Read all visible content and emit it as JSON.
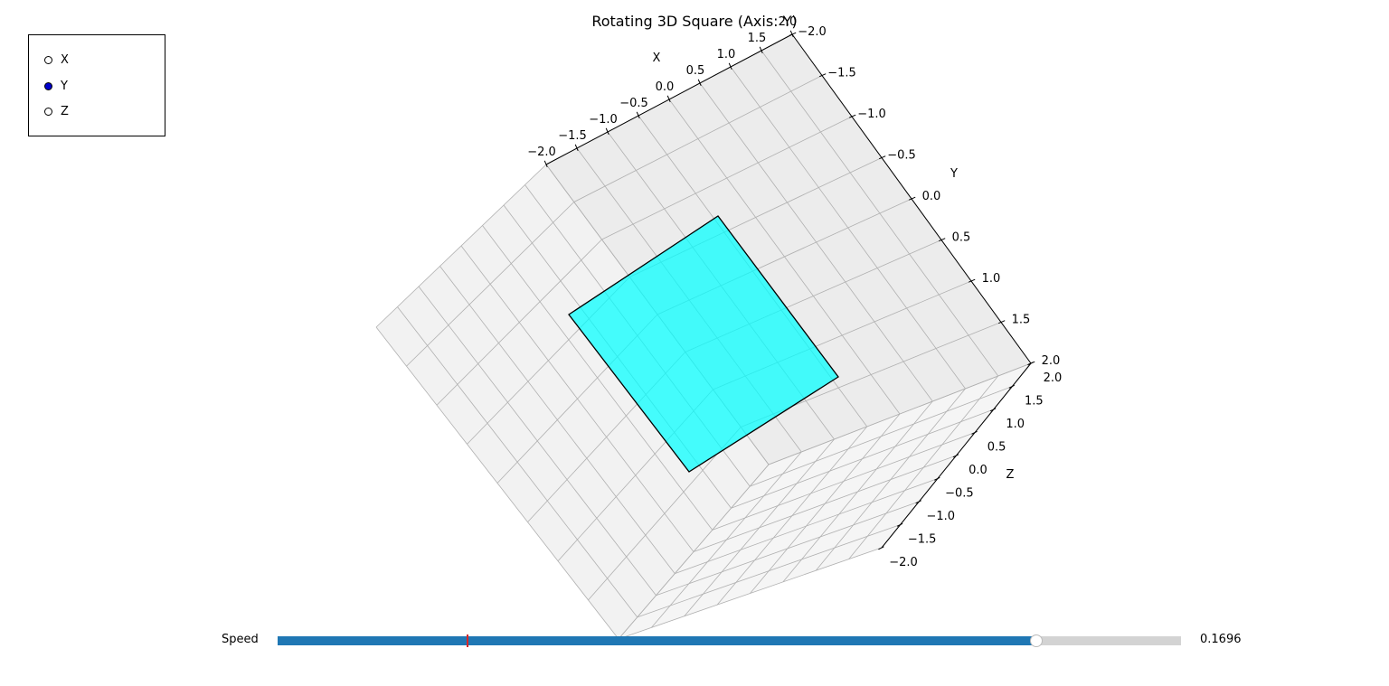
{
  "title": "Rotating 3D Square (Axis: Y)",
  "axis_selector": {
    "options": [
      "X",
      "Y",
      "Z"
    ],
    "selected": "Y"
  },
  "slider": {
    "label": "Speed",
    "value_text": "0.1696",
    "fill_fraction": 0.84,
    "initial_fraction": 0.21
  },
  "axes": {
    "x_label": "X",
    "y_label": "Y",
    "z_label": "Z",
    "x_ticks": [
      "−2.0",
      "−1.5",
      "−1.0",
      "−0.5",
      "0.0",
      "0.5",
      "1.0",
      "1.5",
      "2.0"
    ],
    "y_ticks": [
      "−2.0",
      "−1.5",
      "−1.0",
      "−0.5",
      "0.0",
      "0.5",
      "1.0",
      "1.5",
      "2.0"
    ],
    "z_ticks": [
      "2.0",
      "1.5",
      "1.0",
      "0.5",
      "0.0",
      "−0.5",
      "−1.0",
      "−1.5",
      "−2.0"
    ],
    "range": [
      -2.0,
      2.0
    ]
  },
  "colors": {
    "pane": "#f2f2f2",
    "grid": "#b0b0b0",
    "square_fill": "#00ffff",
    "square_edge": "#000000",
    "slider_fill": "#1f77b4",
    "slider_track": "#d3d3d3",
    "slider_initial_marker": "#d62728",
    "radio_selected": "#0000cc"
  }
}
